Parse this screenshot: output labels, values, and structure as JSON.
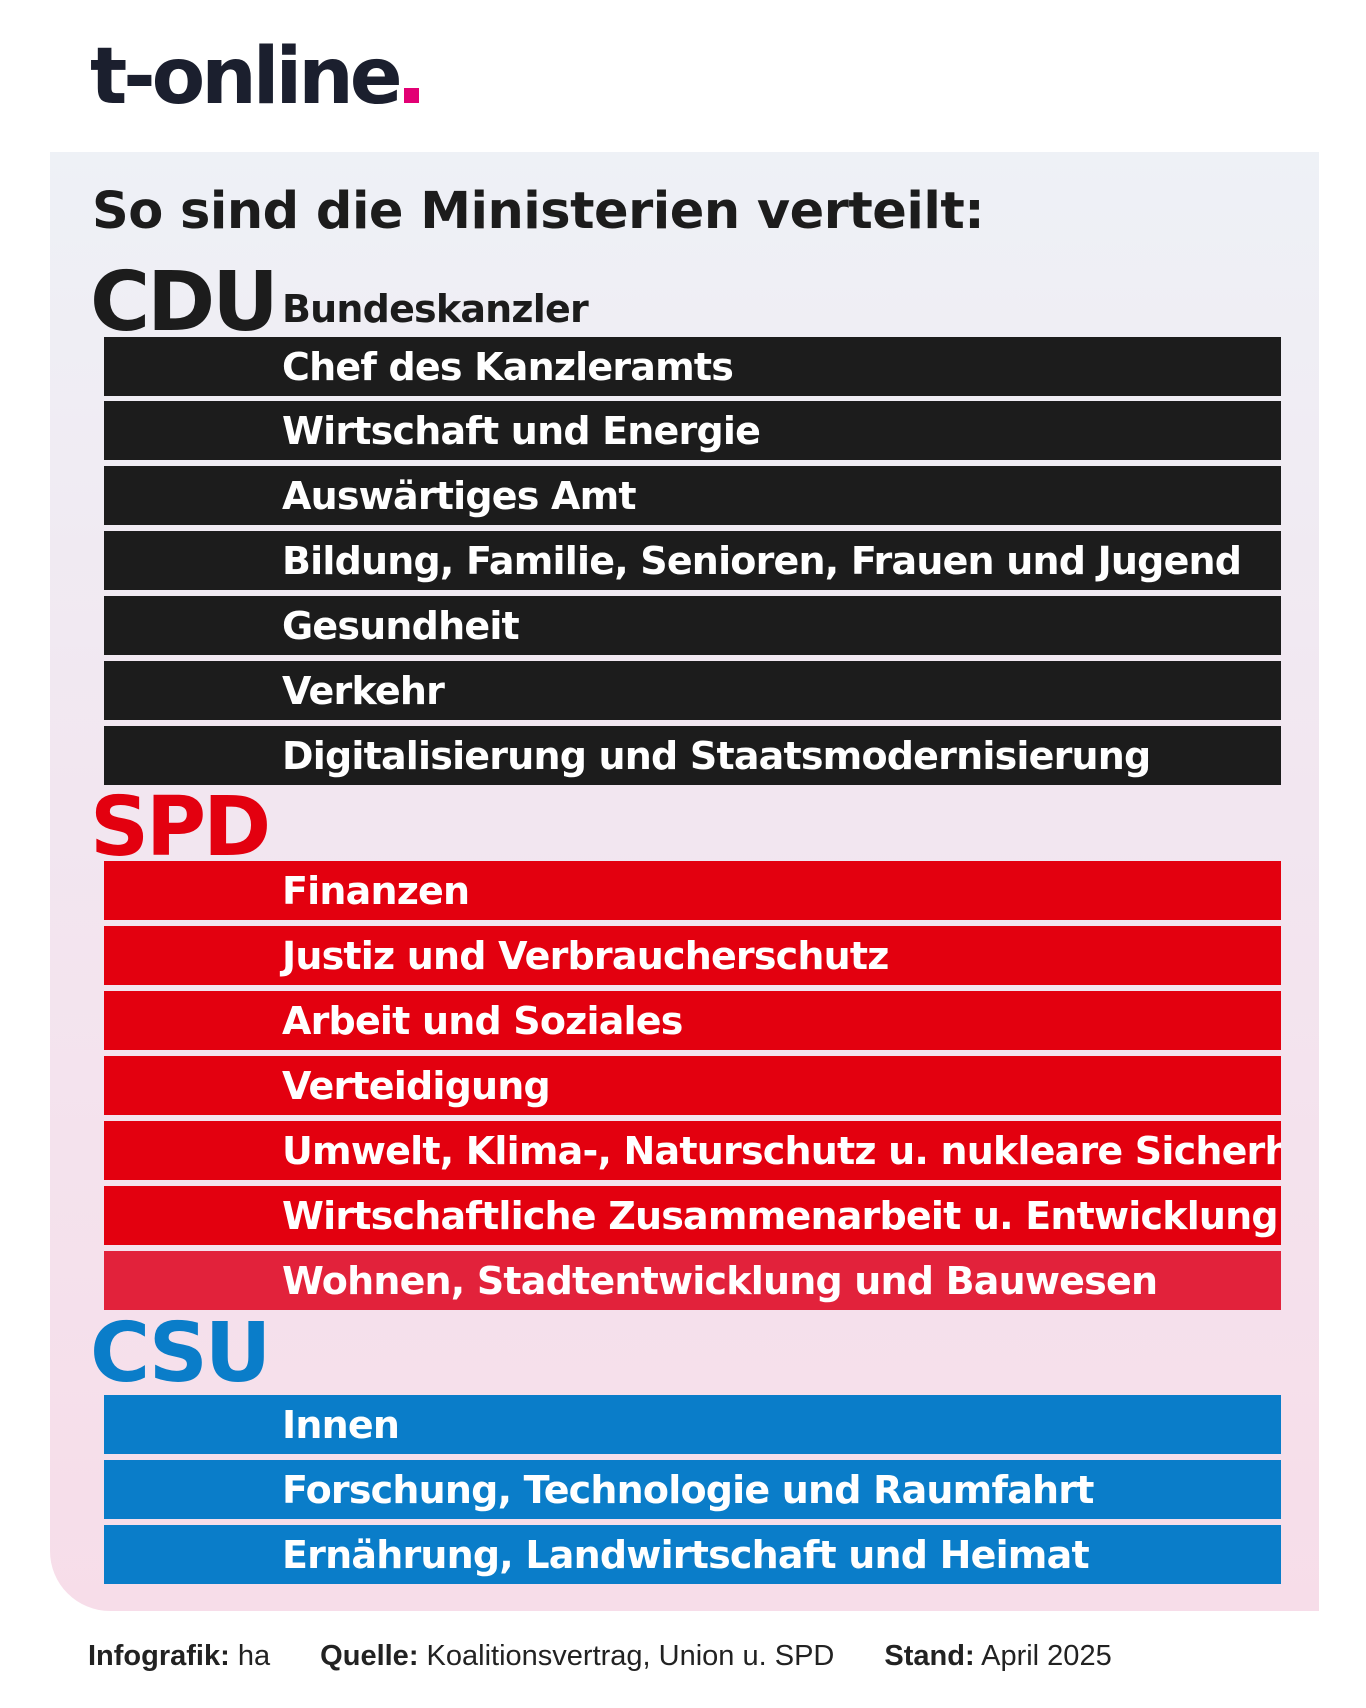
{
  "logo": {
    "text": "t-online",
    "dot_color": "#e20074"
  },
  "heading": "So sind die Ministerien verteilt:",
  "colors": {
    "cdu": "#1c1c1c",
    "spd": "#e3000f",
    "csu": "#0a7dc9"
  },
  "parties": [
    {
      "name": "CDU",
      "ministries": [
        "Bundeskanzler",
        "Chef des Kanzleramts",
        "Wirtschaft und Energie",
        "Auswärtiges Amt",
        "Bildung, Familie, Senioren, Frauen und Jugend",
        "Gesundheit",
        "Verkehr",
        "Digitalisierung und Staatsmodernisierung"
      ]
    },
    {
      "name": "SPD",
      "ministries": [
        "Finanzen",
        "Justiz und Verbraucherschutz",
        "Arbeit und Soziales",
        "Verteidigung",
        "Umwelt, Klima-, Naturschutz u. nukleare Sicherh.",
        "Wirtschaftliche Zusammenarbeit u. Entwicklung",
        "Wohnen, Stadtentwicklung und Bauwesen"
      ]
    },
    {
      "name": "CSU",
      "ministries": [
        "Innen",
        "Forschung, Technologie und Raumfahrt",
        "Ernährung, Landwirtschaft und Heimat"
      ]
    }
  ],
  "footer": {
    "infografik_label": "Infografik:",
    "infografik_value": "ha",
    "quelle_label": "Quelle:",
    "quelle_value": "Koalitionsvertrag, Union u. SPD",
    "stand_label": "Stand:",
    "stand_value": "April 2025"
  }
}
